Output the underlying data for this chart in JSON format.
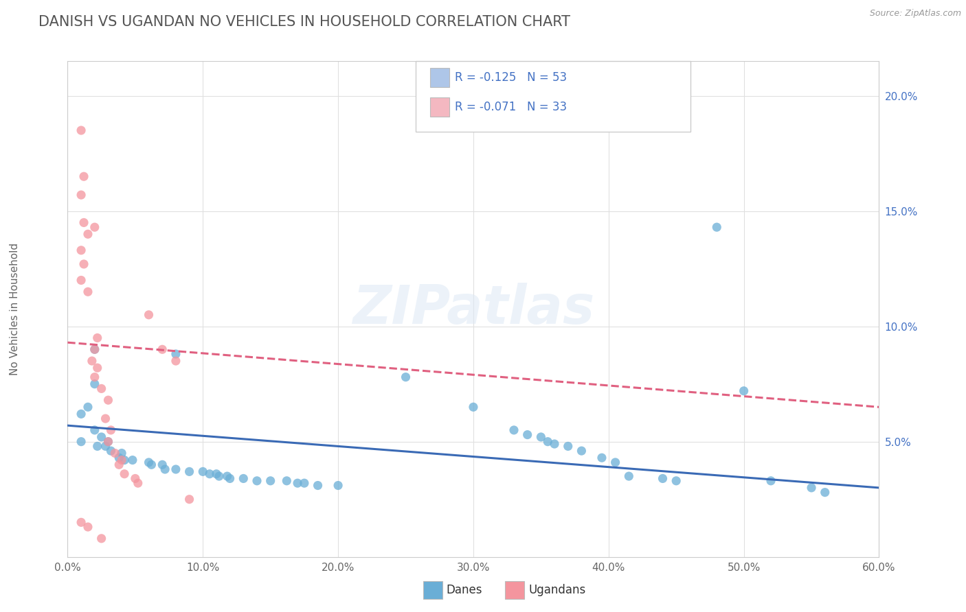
{
  "title": "DANISH VS UGANDAN NO VEHICLES IN HOUSEHOLD CORRELATION CHART",
  "source": "Source: ZipAtlas.com",
  "ylabel": "No Vehicles in Household",
  "xlim": [
    0.0,
    0.6
  ],
  "ylim": [
    0.0,
    0.215
  ],
  "ytick_vals": [
    0.05,
    0.1,
    0.15,
    0.2
  ],
  "ytick_labels": [
    "5.0%",
    "10.0%",
    "15.0%",
    "20.0%"
  ],
  "xtick_vals": [
    0.0,
    0.1,
    0.2,
    0.3,
    0.4,
    0.5,
    0.6
  ],
  "xtick_labels": [
    "0.0%",
    "10.0%",
    "20.0%",
    "30.0%",
    "40.0%",
    "50.0%",
    "60.0%"
  ],
  "legend_entries": [
    {
      "label": "R = -0.125   N = 53",
      "color": "#aec6e8"
    },
    {
      "label": "R = -0.071   N = 33",
      "color": "#f4b8c1"
    }
  ],
  "danes_color": "#6aaed6",
  "ugandans_color": "#f4959e",
  "danes_line_color": "#3a6ab5",
  "ugandans_line_color": "#e06080",
  "danes_scatter": [
    [
      0.02,
      0.09
    ],
    [
      0.02,
      0.075
    ],
    [
      0.015,
      0.065
    ],
    [
      0.01,
      0.062
    ],
    [
      0.02,
      0.055
    ],
    [
      0.025,
      0.052
    ],
    [
      0.01,
      0.05
    ],
    [
      0.03,
      0.05
    ],
    [
      0.028,
      0.048
    ],
    [
      0.022,
      0.048
    ],
    [
      0.032,
      0.046
    ],
    [
      0.04,
      0.045
    ],
    [
      0.038,
      0.043
    ],
    [
      0.042,
      0.042
    ],
    [
      0.048,
      0.042
    ],
    [
      0.06,
      0.041
    ],
    [
      0.062,
      0.04
    ],
    [
      0.07,
      0.04
    ],
    [
      0.072,
      0.038
    ],
    [
      0.08,
      0.038
    ],
    [
      0.09,
      0.037
    ],
    [
      0.1,
      0.037
    ],
    [
      0.105,
      0.036
    ],
    [
      0.11,
      0.036
    ],
    [
      0.112,
      0.035
    ],
    [
      0.118,
      0.035
    ],
    [
      0.12,
      0.034
    ],
    [
      0.13,
      0.034
    ],
    [
      0.14,
      0.033
    ],
    [
      0.15,
      0.033
    ],
    [
      0.162,
      0.033
    ],
    [
      0.17,
      0.032
    ],
    [
      0.175,
      0.032
    ],
    [
      0.185,
      0.031
    ],
    [
      0.2,
      0.031
    ],
    [
      0.08,
      0.088
    ],
    [
      0.25,
      0.078
    ],
    [
      0.3,
      0.065
    ],
    [
      0.33,
      0.055
    ],
    [
      0.34,
      0.053
    ],
    [
      0.35,
      0.052
    ],
    [
      0.355,
      0.05
    ],
    [
      0.36,
      0.049
    ],
    [
      0.37,
      0.048
    ],
    [
      0.38,
      0.046
    ],
    [
      0.395,
      0.043
    ],
    [
      0.405,
      0.041
    ],
    [
      0.415,
      0.035
    ],
    [
      0.44,
      0.034
    ],
    [
      0.45,
      0.033
    ],
    [
      0.48,
      0.143
    ],
    [
      0.5,
      0.072
    ],
    [
      0.52,
      0.033
    ],
    [
      0.55,
      0.03
    ],
    [
      0.56,
      0.028
    ]
  ],
  "ugandans_scatter": [
    [
      0.01,
      0.185
    ],
    [
      0.012,
      0.165
    ],
    [
      0.01,
      0.157
    ],
    [
      0.012,
      0.145
    ],
    [
      0.015,
      0.14
    ],
    [
      0.01,
      0.133
    ],
    [
      0.012,
      0.127
    ],
    [
      0.01,
      0.12
    ],
    [
      0.015,
      0.115
    ],
    [
      0.02,
      0.143
    ],
    [
      0.022,
      0.095
    ],
    [
      0.02,
      0.09
    ],
    [
      0.018,
      0.085
    ],
    [
      0.022,
      0.082
    ],
    [
      0.02,
      0.078
    ],
    [
      0.025,
      0.073
    ],
    [
      0.03,
      0.068
    ],
    [
      0.028,
      0.06
    ],
    [
      0.032,
      0.055
    ],
    [
      0.03,
      0.05
    ],
    [
      0.035,
      0.045
    ],
    [
      0.04,
      0.042
    ],
    [
      0.038,
      0.04
    ],
    [
      0.042,
      0.036
    ],
    [
      0.05,
      0.034
    ],
    [
      0.052,
      0.032
    ],
    [
      0.06,
      0.105
    ],
    [
      0.07,
      0.09
    ],
    [
      0.08,
      0.085
    ],
    [
      0.09,
      0.025
    ],
    [
      0.01,
      0.015
    ],
    [
      0.015,
      0.013
    ],
    [
      0.025,
      0.008
    ]
  ],
  "background_color": "#ffffff",
  "danes_trendline": [
    [
      0.0,
      0.057
    ],
    [
      0.6,
      0.03
    ]
  ],
  "ugandans_trendline": [
    [
      0.0,
      0.093
    ],
    [
      0.6,
      0.065
    ]
  ]
}
